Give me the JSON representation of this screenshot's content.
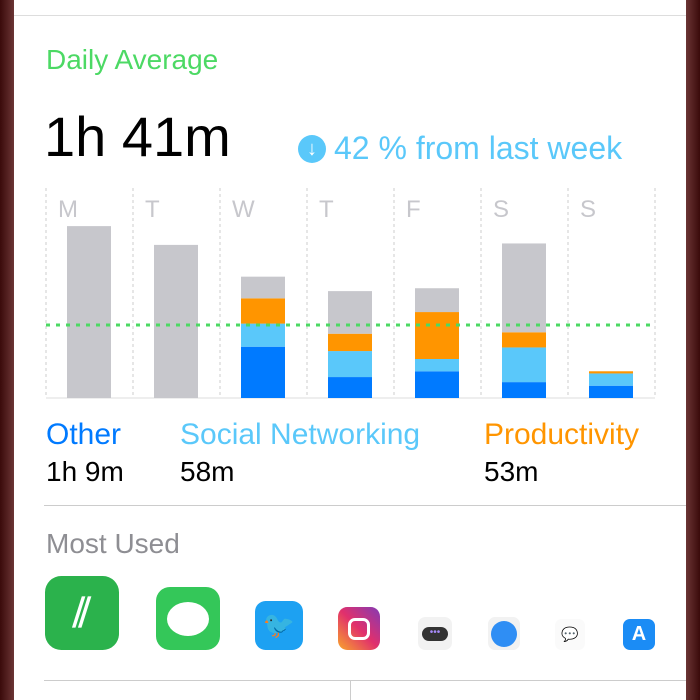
{
  "header": {
    "label": "Daily Average",
    "total": "1h 41m",
    "change": "42 % from last week",
    "change_icon": "arrow-down-circle-icon"
  },
  "colors": {
    "other": "#c7c7cc",
    "social": "#5ac8fa",
    "productivity": "#ff9500",
    "blue": "#007aff",
    "avg": "#4cd964",
    "green_label": "#4cd964"
  },
  "chart_data": {
    "type": "bar",
    "stacked": true,
    "categories": [
      "M",
      "T",
      "W",
      "T",
      "F",
      "S",
      "S"
    ],
    "unit": "minutes",
    "average_line": 101,
    "ylim": [
      0,
      288
    ],
    "series": [
      {
        "name": "Other",
        "color": "#007aff",
        "values": [
          0,
          0,
          71,
          29,
          37,
          22,
          17
        ]
      },
      {
        "name": "Social Networking",
        "color": "#5ac8fa",
        "values": [
          0,
          0,
          32,
          36,
          17,
          48,
          17
        ]
      },
      {
        "name": "Productivity",
        "color": "#ff9500",
        "values": [
          0,
          0,
          35,
          24,
          65,
          21,
          3
        ]
      },
      {
        "color": "#c7c7cc",
        "values": [
          238,
          212,
          30,
          59,
          33,
          123,
          0
        ]
      }
    ]
  },
  "legend": [
    {
      "label": "Other",
      "value": "1h 9m",
      "color": "#007aff"
    },
    {
      "label": "Social Networking",
      "value": "58m",
      "color": "#5ac8fa"
    },
    {
      "label": "Productivity",
      "value": "53m",
      "color": "#ff9500"
    }
  ],
  "most_used": {
    "label": "Most Used",
    "apps": [
      "feedly-icon",
      "messages-icon",
      "twitter-icon",
      "instagram-icon",
      "chatbot-icon",
      "safari-icon",
      "rocketchat-icon",
      "app-store-icon"
    ]
  }
}
